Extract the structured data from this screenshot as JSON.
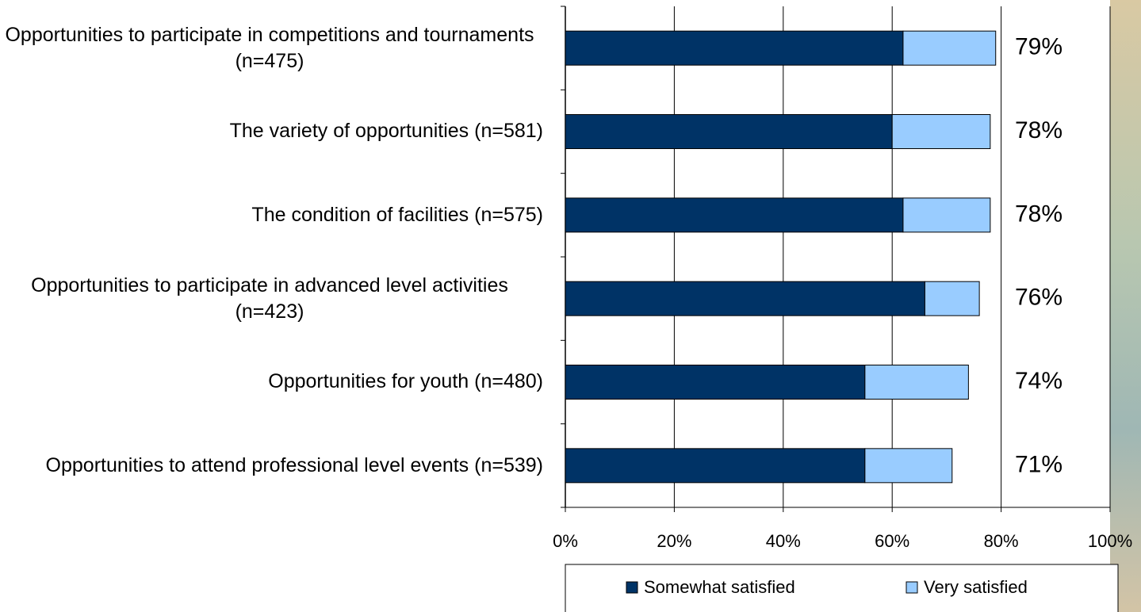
{
  "chart_data": {
    "type": "stacked-barh",
    "categories": [
      "Opportunities to participate in competitions and tournaments (n=475)",
      "The variety of opportunities (n=581)",
      "The condition of facilities (n=575)",
      "Opportunities to participate in advanced level activities (n=423)",
      "Opportunities for youth (n=480)",
      "Opportunities to attend professional level events (n=539)"
    ],
    "series": [
      {
        "name": "Somewhat satisfied",
        "color": "#003366",
        "values": [
          62,
          60,
          62,
          66,
          55,
          55
        ]
      },
      {
        "name": "Very satisfied",
        "color": "#99ccff",
        "values": [
          17,
          18,
          16,
          10,
          19,
          16
        ]
      }
    ],
    "totals": [
      79,
      78,
      78,
      76,
      74,
      71
    ],
    "total_labels": [
      "79%",
      "78%",
      "78%",
      "76%",
      "74%",
      "71%"
    ],
    "xlim": [
      0,
      100
    ],
    "xticks": [
      {
        "value": 0,
        "label": "0%"
      },
      {
        "value": 20,
        "label": "20%"
      },
      {
        "value": 40,
        "label": "40%"
      },
      {
        "value": 60,
        "label": "60%"
      },
      {
        "value": 80,
        "label": "80%"
      },
      {
        "value": 100,
        "label": "100%"
      }
    ],
    "grid": true,
    "legend": "bottom"
  }
}
